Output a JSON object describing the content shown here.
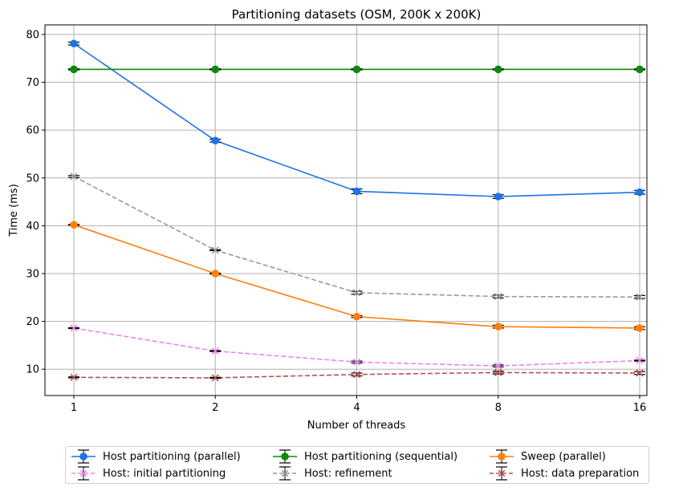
{
  "chart_data": {
    "type": "line",
    "title": "Partitioning datasets (OSM, 200K x 200K)",
    "xlabel": "Number of threads",
    "ylabel": "Time (ms)",
    "categories": [
      "1",
      "2",
      "4",
      "8",
      "16"
    ],
    "x_scale": "log2",
    "ylim": [
      4.5,
      82
    ],
    "yticks": [
      10,
      20,
      30,
      40,
      50,
      60,
      70,
      80
    ],
    "grid": true,
    "legend_position": "bottom",
    "series": [
      {
        "name": "Host partitioning (parallel)",
        "values": [
          78.1,
          57.8,
          47.2,
          46.1,
          47.0
        ],
        "errors": [
          0.3,
          0.3,
          0.5,
          0.4,
          0.4
        ],
        "color": "#1a73e8",
        "marker": "o",
        "dashed": false
      },
      {
        "name": "Host partitioning (sequential)",
        "values": [
          72.7,
          72.7,
          72.7,
          72.7,
          72.7
        ],
        "errors": [
          0.1,
          0.1,
          0.1,
          0.1,
          0.1
        ],
        "color": "#0a8a0a",
        "marker": "o",
        "dashed": false
      },
      {
        "name": "Sweep (parallel)",
        "values": [
          40.2,
          30.0,
          21.0,
          18.9,
          18.6
        ],
        "errors": [
          0.1,
          0.1,
          0.2,
          0.3,
          0.3
        ],
        "color": "#ff7f0e",
        "marker": "o",
        "dashed": false
      },
      {
        "name": "Host: initial partitioning",
        "values": [
          18.6,
          13.8,
          11.5,
          10.7,
          11.8
        ],
        "errors": [
          0.1,
          0.1,
          0.2,
          0.2,
          0.1
        ],
        "color": "#ee82ee",
        "marker": "x",
        "dashed": true
      },
      {
        "name": "Host: refinement",
        "values": [
          50.3,
          34.9,
          26.0,
          25.2,
          25.1
        ],
        "errors": [
          0.2,
          0.1,
          0.3,
          0.3,
          0.3
        ],
        "color": "#999999",
        "marker": "x",
        "dashed": true
      },
      {
        "name": "Host: data preparation",
        "values": [
          8.3,
          8.2,
          8.9,
          9.3,
          9.2
        ],
        "errors": [
          0.1,
          0.1,
          0.3,
          0.3,
          0.3
        ],
        "color": "#b5524f",
        "marker": "x",
        "dashed": true
      }
    ]
  }
}
